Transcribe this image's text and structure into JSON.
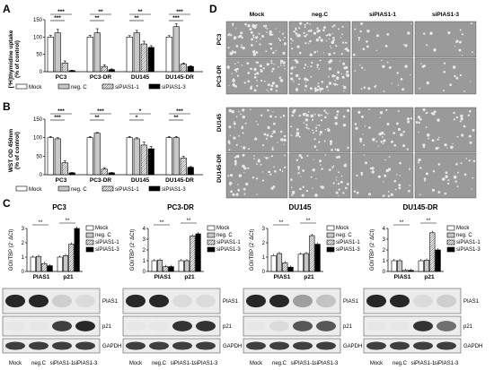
{
  "panels": {
    "A": "A",
    "B": "B",
    "C": "C",
    "D": "D"
  },
  "chart_data": [
    {
      "type": "bar",
      "panel": "A",
      "ylabel": "[³H]thymidine uptake\n(% of control)",
      "yticks": [
        "0",
        "50",
        "100",
        "150"
      ],
      "ylim": [
        0,
        150
      ],
      "categories": [
        "PC3",
        "PC3-DR",
        "DU145",
        "DU145-DR"
      ],
      "series": [
        {
          "name": "Mock",
          "values": [
            100,
            100,
            100,
            100
          ],
          "err": [
            5,
            5,
            4,
            4
          ]
        },
        {
          "name": "neg. C",
          "values": [
            112,
            112,
            112,
            130
          ],
          "err": [
            10,
            12,
            7,
            8
          ]
        },
        {
          "name": "siPIAS1-1",
          "values": [
            25,
            15,
            80,
            22
          ],
          "err": [
            6,
            5,
            8,
            3
          ]
        },
        {
          "name": "siPIAS1-3",
          "values": [
            3,
            6,
            70,
            15
          ],
          "err": [
            1,
            2,
            5,
            2
          ]
        }
      ],
      "significance": [
        "***",
        "***",
        "**",
        "**",
        "**",
        "**",
        "***",
        "***"
      ]
    },
    {
      "type": "bar",
      "panel": "B",
      "ylabel": "WST OD 450nm\n(% of control)",
      "yticks": [
        "0",
        "50",
        "100",
        "150"
      ],
      "ylim": [
        0,
        150
      ],
      "categories": [
        "PC3",
        "PC3-DR",
        "DU145",
        "DU145-DR"
      ],
      "series": [
        {
          "name": "Mock",
          "values": [
            100,
            100,
            100,
            100
          ],
          "err": [
            3,
            3,
            3,
            3
          ]
        },
        {
          "name": "neg. C",
          "values": [
            97,
            112,
            97,
            100
          ],
          "err": [
            3,
            2,
            3,
            3
          ]
        },
        {
          "name": "siPIAS1-1",
          "values": [
            32,
            15,
            80,
            45
          ],
          "err": [
            5,
            4,
            8,
            5
          ]
        },
        {
          "name": "siPIAS1-3",
          "values": [
            5,
            5,
            70,
            20
          ],
          "err": [
            1,
            1,
            6,
            2
          ]
        }
      ],
      "significance": [
        "***",
        "***",
        "***",
        "**",
        "*",
        "*",
        "***",
        "**"
      ]
    },
    {
      "type": "bar",
      "panel": "C",
      "title": "PC3",
      "ylabel": "GOI/TBP (2^-ΔCt)",
      "categories": [
        "PIAS1",
        "p21"
      ],
      "yticks": [
        "0",
        "1",
        "2",
        "3"
      ],
      "series": [
        {
          "name": "Mock",
          "values": [
            1.0,
            1.0
          ]
        },
        {
          "name": "neg. C",
          "values": [
            1.05,
            1.1
          ]
        },
        {
          "name": "siPIAS1-1",
          "values": [
            0.55,
            1.9
          ]
        },
        {
          "name": "siPIAS1-3",
          "values": [
            0.4,
            3.0
          ]
        }
      ]
    },
    {
      "type": "bar",
      "panel": "C",
      "title": "PC3-DR",
      "ylabel": "GOI/TBP (2^-ΔCt)",
      "categories": [
        "PIAS1",
        "p21"
      ],
      "yticks": [
        "0",
        "1",
        "2",
        "3",
        "4"
      ],
      "series": [
        {
          "name": "Mock",
          "values": [
            1.0,
            1.0
          ]
        },
        {
          "name": "neg. C",
          "values": [
            1.05,
            1.0
          ]
        },
        {
          "name": "siPIAS1-1",
          "values": [
            0.45,
            3.3
          ]
        },
        {
          "name": "siPIAS1-3",
          "values": [
            0.45,
            3.5
          ]
        }
      ]
    },
    {
      "type": "bar",
      "panel": "C",
      "title": "DU145",
      "ylabel": "GOI/TBP (2^-ΔCt)",
      "categories": [
        "PIAS1",
        "p21"
      ],
      "yticks": [
        "0",
        "1",
        "2",
        "3"
      ],
      "series": [
        {
          "name": "Mock",
          "values": [
            1.1,
            1.2
          ]
        },
        {
          "name": "neg. C",
          "values": [
            1.25,
            1.25
          ]
        },
        {
          "name": "siPIAS1-1",
          "values": [
            0.6,
            2.5
          ]
        },
        {
          "name": "siPIAS1-3",
          "values": [
            0.3,
            1.9
          ]
        }
      ]
    },
    {
      "type": "bar",
      "panel": "C",
      "title": "DU145-DR",
      "ylabel": "GOI/TBP (2^-ΔCt)",
      "categories": [
        "PIAS1",
        "p21"
      ],
      "yticks": [
        "0",
        "1",
        "2",
        "3",
        "4"
      ],
      "series": [
        {
          "name": "Mock",
          "values": [
            1.0,
            1.0
          ]
        },
        {
          "name": "neg. C",
          "values": [
            1.0,
            1.05
          ]
        },
        {
          "name": "siPIAS1-1",
          "values": [
            0.1,
            3.6
          ]
        },
        {
          "name": "siPIAS1-3",
          "values": [
            0.1,
            2.0
          ]
        }
      ]
    }
  ],
  "legend": [
    "Mock",
    "neg. C",
    "siPIAS1-1",
    "siPIAS1-3"
  ],
  "legend_colors": [
    "#ffffff",
    "#c8c8c8",
    "#ffffff",
    "#000000"
  ],
  "blots": {
    "bands": [
      "PIAS1",
      "p21",
      "GAPDH"
    ],
    "lanes": [
      "Mock",
      "neg.C",
      "siPIAS1-1",
      "siPIAS1-3"
    ]
  },
  "micro": {
    "columns": [
      "Mock",
      "neg.C",
      "siPIAS1-1",
      "siPIAS1-3"
    ],
    "rows": [
      "PC3",
      "PC3-DR",
      "DU145",
      "DU145-DR"
    ]
  }
}
